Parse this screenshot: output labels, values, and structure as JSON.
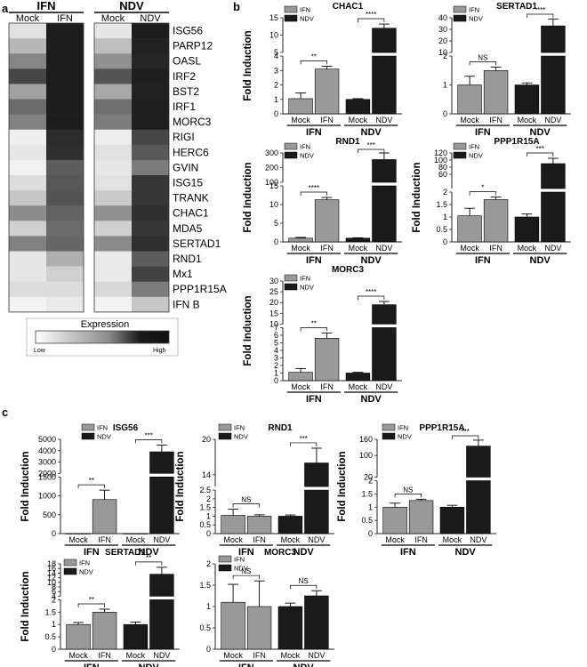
{
  "colors": {
    "ifn": "#999999",
    "ndv": "#1a1a1a",
    "axis": "#222222"
  },
  "panel_labels": {
    "a": "a",
    "b": "b",
    "c": "c"
  },
  "heatmap": {
    "groups": [
      "IFN",
      "NDV"
    ],
    "columns": [
      "Mock",
      "IFN",
      "Mock",
      "NDV"
    ],
    "genes": [
      "ISG56",
      "PARP12",
      "OASL",
      "IRF2",
      "BST2",
      "IRF1",
      "MORC3",
      "RIGI",
      "HERC6",
      "GVIN",
      "ISG15",
      "TRANK",
      "CHAC1",
      "MDA5",
      "SERTAD1",
      "RND1",
      "Mx1",
      "PPP1R15A",
      "IFN B"
    ],
    "values": [
      [
        0.1,
        0.96,
        0.08,
        0.96
      ],
      [
        0.28,
        0.96,
        0.25,
        0.94
      ],
      [
        0.5,
        0.96,
        0.45,
        0.92
      ],
      [
        0.78,
        0.96,
        0.72,
        0.95
      ],
      [
        0.38,
        0.96,
        0.35,
        0.94
      ],
      [
        0.62,
        0.96,
        0.6,
        0.95
      ],
      [
        0.52,
        0.96,
        0.55,
        0.95
      ],
      [
        0.04,
        0.9,
        0.05,
        0.78
      ],
      [
        0.08,
        0.88,
        0.1,
        0.7
      ],
      [
        0.03,
        0.68,
        0.08,
        0.55
      ],
      [
        0.12,
        0.7,
        0.1,
        0.85
      ],
      [
        0.22,
        0.72,
        0.2,
        0.85
      ],
      [
        0.48,
        0.66,
        0.45,
        0.88
      ],
      [
        0.18,
        0.62,
        0.18,
        0.85
      ],
      [
        0.52,
        0.64,
        0.48,
        0.88
      ],
      [
        0.08,
        0.32,
        0.06,
        0.68
      ],
      [
        0.08,
        0.18,
        0.06,
        0.8
      ],
      [
        0.12,
        0.12,
        0.14,
        0.55
      ],
      [
        0.02,
        0.06,
        0.02,
        0.22
      ]
    ],
    "legend_title": "Expression",
    "legend_low": "Low",
    "legend_high": "High"
  },
  "chart_data": [
    {
      "type": "bar",
      "panel": "b",
      "title": "CHAC1",
      "ylabel": "Fold Induction",
      "legend": [
        "IFN",
        "NDV"
      ],
      "groups": [
        "IFN",
        "NDV"
      ],
      "categories": [
        "Mock",
        "IFN",
        "Mock",
        "NDV"
      ],
      "values": [
        1.05,
        3.1,
        1.0,
        12.0
      ],
      "errors": [
        0.4,
        0.2,
        0.05,
        1.2
      ],
      "axis_breaks": [
        {
          "range": [
            0,
            4
          ],
          "ticks": [
            0,
            1,
            2,
            3,
            4
          ]
        },
        {
          "range": [
            5,
            15
          ],
          "ticks": [
            5,
            10,
            15
          ]
        }
      ],
      "significance": [
        {
          "pair": [
            0,
            1
          ],
          "label": "**"
        },
        {
          "pair": [
            2,
            3
          ],
          "label": "****"
        }
      ]
    },
    {
      "type": "bar",
      "panel": "b",
      "title": "SERTAD1",
      "ylabel": "",
      "legend": [
        "IFN",
        "NDV"
      ],
      "groups": [
        "IFN",
        "NDV"
      ],
      "categories": [
        "Mock",
        "IFN",
        "Mock",
        "NDV"
      ],
      "values": [
        1.0,
        1.5,
        1.0,
        33
      ],
      "errors": [
        0.3,
        0.12,
        0.07,
        6
      ],
      "axis_breaks": [
        {
          "range": [
            0,
            2
          ],
          "ticks": [
            0,
            1,
            2
          ]
        },
        {
          "range": [
            10,
            40
          ],
          "ticks": [
            10,
            20,
            30,
            40
          ]
        }
      ],
      "significance": [
        {
          "pair": [
            0,
            1
          ],
          "label": "NS"
        },
        {
          "pair": [
            2,
            3
          ],
          "label": "****"
        }
      ]
    },
    {
      "type": "bar",
      "panel": "b",
      "title": "RND1",
      "ylabel": "Fold Induction",
      "legend": [
        "IFN",
        "NDV"
      ],
      "groups": [
        "IFN",
        "NDV"
      ],
      "categories": [
        "Mock",
        "IFN",
        "Mock",
        "NDV"
      ],
      "values": [
        1.0,
        11.3,
        1.0,
        255
      ],
      "errors": [
        0.2,
        0.6,
        0.1,
        45
      ],
      "axis_breaks": [
        {
          "range": [
            0,
            15
          ],
          "ticks": [
            0,
            5,
            10,
            15
          ]
        },
        {
          "range": [
            100,
            300
          ],
          "ticks": [
            100,
            200,
            300
          ]
        }
      ],
      "significance": [
        {
          "pair": [
            0,
            1
          ],
          "label": "****"
        },
        {
          "pair": [
            2,
            3
          ],
          "label": "***"
        }
      ]
    },
    {
      "type": "bar",
      "panel": "b",
      "title": "PPP1R15A",
      "ylabel": "Fold Induction",
      "legend": [
        "IFN",
        "NDV"
      ],
      "groups": [
        "IFN",
        "NDV"
      ],
      "categories": [
        "Mock",
        "IFN",
        "Mock",
        "NDV"
      ],
      "values": [
        1.05,
        1.7,
        1.0,
        90
      ],
      "errors": [
        0.3,
        0.1,
        0.12,
        15
      ],
      "axis_breaks": [
        {
          "range": [
            0,
            2
          ],
          "ticks": [
            0.0,
            0.5,
            1.0,
            1.5,
            2.0
          ]
        },
        {
          "range": [
            20,
            120
          ],
          "ticks": [
            60,
            80,
            100,
            120
          ]
        }
      ],
      "significance": [
        {
          "pair": [
            0,
            1
          ],
          "label": "*"
        },
        {
          "pair": [
            2,
            3
          ],
          "label": "***"
        }
      ]
    },
    {
      "type": "bar",
      "panel": "b",
      "title": "MORC3",
      "ylabel": "Fold Induction",
      "legend": [
        "IFN",
        "NDV"
      ],
      "groups": [
        "IFN",
        "NDV"
      ],
      "categories": [
        "Mock",
        "IFN",
        "Mock",
        "NDV"
      ],
      "values": [
        1.1,
        5.6,
        1.0,
        19
      ],
      "errors": [
        0.5,
        0.7,
        0.1,
        1.5
      ],
      "axis_breaks": [
        {
          "range": [
            0,
            7
          ],
          "ticks": [
            0,
            1,
            2,
            3,
            4,
            5,
            6,
            7
          ]
        },
        {
          "range": [
            10,
            30
          ],
          "ticks": [
            10,
            15,
            20,
            25,
            30
          ]
        }
      ],
      "significance": [
        {
          "pair": [
            0,
            1
          ],
          "label": "**"
        },
        {
          "pair": [
            2,
            3
          ],
          "label": "****"
        }
      ]
    },
    {
      "type": "bar",
      "panel": "c",
      "title": "ISG56",
      "ylabel": "Fold Induction",
      "legend": [
        "IFN",
        "NDV"
      ],
      "groups": [
        "IFN",
        "NDV"
      ],
      "categories": [
        "Mock",
        "IFN",
        "Mock",
        "NDV"
      ],
      "values": [
        1,
        900,
        1,
        3900
      ],
      "errors": [
        0,
        250,
        0,
        600
      ],
      "axis_breaks": [
        {
          "range": [
            0,
            1500
          ],
          "ticks": [
            0,
            500,
            1000,
            1500
          ]
        },
        {
          "range": [
            2000,
            5000
          ],
          "ticks": [
            2000,
            3000,
            4000,
            5000
          ]
        }
      ],
      "significance": [
        {
          "pair": [
            0,
            1
          ],
          "label": "**"
        },
        {
          "pair": [
            2,
            3
          ],
          "label": "***"
        }
      ]
    },
    {
      "type": "bar",
      "panel": "c",
      "title": "RND1",
      "ylabel": "Fold Induction",
      "legend": [
        "IFN",
        "NDV"
      ],
      "groups": [
        "IFN",
        "NDV"
      ],
      "categories": [
        "Mock",
        "IFN",
        "Mock",
        "NDV"
      ],
      "values": [
        1.05,
        1.0,
        1.0,
        16
      ],
      "errors": [
        0.35,
        0.08,
        0.07,
        2.5
      ],
      "axis_breaks": [
        {
          "range": [
            0,
            2.5
          ],
          "ticks": [
            0.0,
            0.5,
            1.0,
            1.5,
            2.0,
            2.5
          ]
        },
        {
          "range": [
            12,
            20
          ],
          "ticks": [
            14,
            20
          ]
        }
      ],
      "significance": [
        {
          "pair": [
            0,
            1
          ],
          "label": "NS"
        },
        {
          "pair": [
            2,
            3
          ],
          "label": "***"
        }
      ]
    },
    {
      "type": "bar",
      "panel": "c",
      "title": "PPP1R15A",
      "ylabel": "Fold Induction",
      "legend": [
        "IFN",
        "NDV"
      ],
      "groups": [
        "IFN",
        "NDV"
      ],
      "categories": [
        "Mock",
        "IFN",
        "Mock",
        "NDV"
      ],
      "values": [
        1.0,
        1.25,
        1.0,
        135
      ],
      "errors": [
        0.15,
        0.05,
        0.07,
        22
      ],
      "axis_breaks": [
        {
          "range": [
            0,
            2
          ],
          "ticks": [
            0.0,
            0.5,
            1.0,
            1.5,
            2.0
          ]
        },
        {
          "range": [
            20,
            160
          ],
          "ticks": [
            20,
            100,
            160
          ]
        }
      ],
      "significance": [
        {
          "pair": [
            0,
            1
          ],
          "label": "NS"
        },
        {
          "pair": [
            2,
            3
          ],
          "label": "***"
        }
      ]
    },
    {
      "type": "bar",
      "panel": "c",
      "title": "SERTAD1",
      "ylabel": "Fold Induction",
      "legend": [
        "IFN",
        "NDV"
      ],
      "groups": [
        "IFN",
        "NDV"
      ],
      "categories": [
        "Mock",
        "IFN",
        "Mock",
        "NDV"
      ],
      "values": [
        1.0,
        1.5,
        1.0,
        13.5
      ],
      "errors": [
        0.08,
        0.12,
        0.1,
        3
      ],
      "axis_breaks": [
        {
          "range": [
            0,
            2
          ],
          "ticks": [
            0.0,
            0.5,
            1.0,
            1.5,
            2.0
          ]
        },
        {
          "range": [
            4,
            18
          ],
          "ticks": [
            4,
            6,
            8,
            10,
            12,
            14,
            16,
            18
          ]
        }
      ],
      "significance": [
        {
          "pair": [
            0,
            1
          ],
          "label": "**"
        },
        {
          "pair": [
            2,
            3
          ],
          "label": "**"
        }
      ]
    },
    {
      "type": "bar",
      "panel": "c",
      "title": "MORC3",
      "ylabel": "",
      "legend": [
        "IFN",
        "NDV"
      ],
      "groups": [
        "IFN",
        "NDV"
      ],
      "categories": [
        "Mock",
        "IFN",
        "Mock",
        "NDV"
      ],
      "values": [
        1.1,
        1.0,
        1.0,
        1.25
      ],
      "errors": [
        0.42,
        0.6,
        0.08,
        0.12
      ],
      "axis_breaks": [
        {
          "range": [
            0,
            2
          ],
          "ticks": [
            0.0,
            0.5,
            1.0,
            1.5,
            2.0
          ]
        }
      ],
      "significance": [
        {
          "pair": [
            0,
            1
          ],
          "label": "NS"
        },
        {
          "pair": [
            2,
            3
          ],
          "label": "NS"
        }
      ]
    }
  ]
}
